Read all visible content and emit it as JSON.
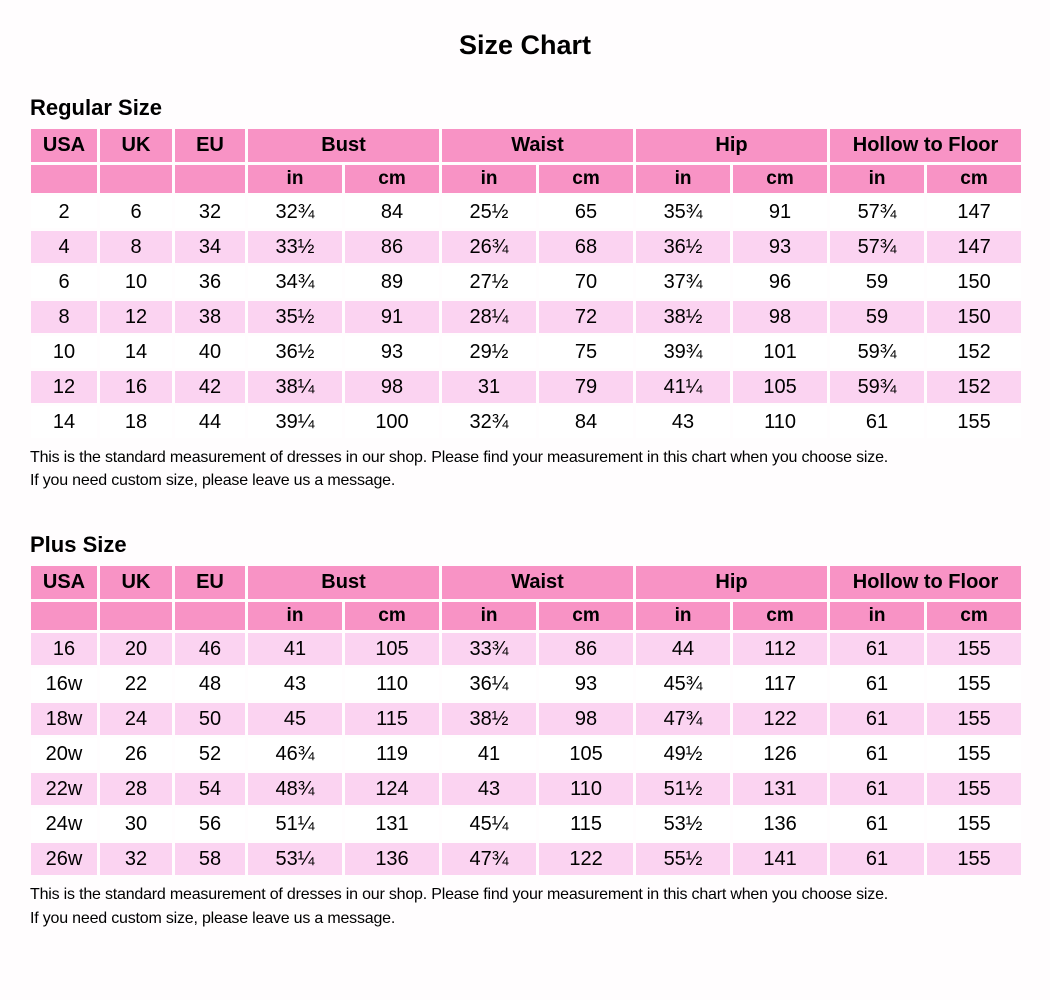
{
  "title": "Size Chart",
  "notes": {
    "line1": "This is the standard measurement of dresses in our shop. Please find your measurement in this chart when you choose size.",
    "line2": "If you need custom size, please leave us a message."
  },
  "colors": {
    "header_pink": "#f893c5",
    "shaded_row_pink": "#fbd3f1",
    "row_white": "#ffffff",
    "grid_white": "#ffffff",
    "text": "#000000"
  },
  "chart_data": [
    {
      "type": "table",
      "title": "Regular Size",
      "id_columns": [
        "USA",
        "UK",
        "EU"
      ],
      "group_columns": [
        "Bust",
        "Waist",
        "Hip",
        "Hollow to Floor"
      ],
      "unit_labels": [
        "in",
        "cm"
      ],
      "first_row_shaded": false,
      "rows": [
        [
          "2",
          "6",
          "32",
          "32¾",
          "84",
          "25½",
          "65",
          "35¾",
          "91",
          "57¾",
          "147"
        ],
        [
          "4",
          "8",
          "34",
          "33½",
          "86",
          "26¾",
          "68",
          "36½",
          "93",
          "57¾",
          "147"
        ],
        [
          "6",
          "10",
          "36",
          "34¾",
          "89",
          "27½",
          "70",
          "37¾",
          "96",
          "59",
          "150"
        ],
        [
          "8",
          "12",
          "38",
          "35½",
          "91",
          "28¼",
          "72",
          "38½",
          "98",
          "59",
          "150"
        ],
        [
          "10",
          "14",
          "40",
          "36½",
          "93",
          "29½",
          "75",
          "39¾",
          "101",
          "59¾",
          "152"
        ],
        [
          "12",
          "16",
          "42",
          "38¼",
          "98",
          "31",
          "79",
          "41¼",
          "105",
          "59¾",
          "152"
        ],
        [
          "14",
          "18",
          "44",
          "39¼",
          "100",
          "32¾",
          "84",
          "43",
          "110",
          "61",
          "155"
        ]
      ]
    },
    {
      "type": "table",
      "title": "Plus Size",
      "id_columns": [
        "USA",
        "UK",
        "EU"
      ],
      "group_columns": [
        "Bust",
        "Waist",
        "Hip",
        "Hollow to Floor"
      ],
      "unit_labels": [
        "in",
        "cm"
      ],
      "first_row_shaded": true,
      "rows": [
        [
          "16",
          "20",
          "46",
          "41",
          "105",
          "33¾",
          "86",
          "44",
          "112",
          "61",
          "155"
        ],
        [
          "16w",
          "22",
          "48",
          "43",
          "110",
          "36¼",
          "93",
          "45¾",
          "117",
          "61",
          "155"
        ],
        [
          "18w",
          "24",
          "50",
          "45",
          "115",
          "38½",
          "98",
          "47¾",
          "122",
          "61",
          "155"
        ],
        [
          "20w",
          "26",
          "52",
          "46¾",
          "119",
          "41",
          "105",
          "49½",
          "126",
          "61",
          "155"
        ],
        [
          "22w",
          "28",
          "54",
          "48¾",
          "124",
          "43",
          "110",
          "51½",
          "131",
          "61",
          "155"
        ],
        [
          "24w",
          "30",
          "56",
          "51¼",
          "131",
          "45¼",
          "115",
          "53½",
          "136",
          "61",
          "155"
        ],
        [
          "26w",
          "32",
          "58",
          "53¼",
          "136",
          "47¾",
          "122",
          "55½",
          "141",
          "61",
          "155"
        ]
      ]
    }
  ]
}
